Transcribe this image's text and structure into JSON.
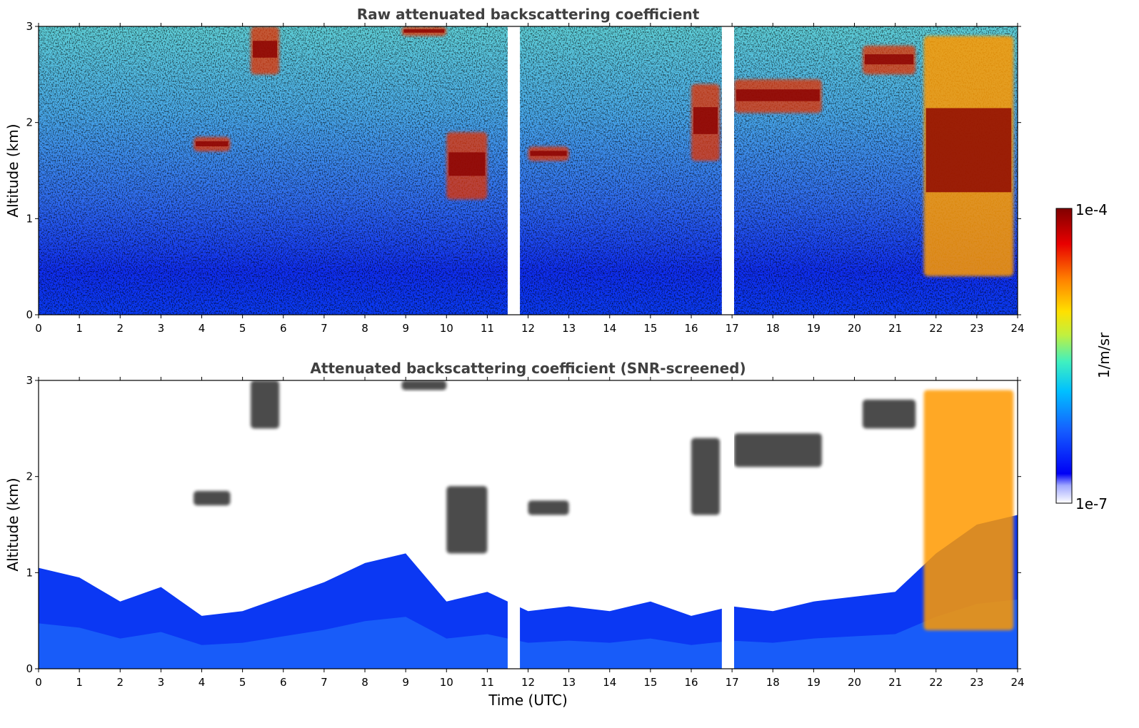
{
  "chart_data": [
    {
      "type": "heatmap",
      "title": "Raw attenuated backscattering coefficient",
      "xlabel": "",
      "ylabel": "Altitude (km)",
      "xlim": [
        0,
        24
      ],
      "ylim": [
        0,
        3
      ],
      "x_ticks": [
        "0",
        "1",
        "2",
        "3",
        "4",
        "5",
        "6",
        "7",
        "8",
        "9",
        "10",
        "11",
        "12",
        "13",
        "14",
        "15",
        "16",
        "17",
        "18",
        "19",
        "20",
        "21",
        "22",
        "23",
        "24"
      ],
      "y_ticks": [
        "0",
        "1",
        "2",
        "3"
      ],
      "data_gaps_utc": [
        [
          11.5,
          11.8
        ],
        [
          16.75,
          17.05
        ]
      ],
      "cloud_layers": [
        {
          "x": [
            3.8,
            4.7
          ],
          "y": [
            1.7,
            1.85
          ]
        },
        {
          "x": [
            5.2,
            5.9
          ],
          "y": [
            2.5,
            3.0
          ]
        },
        {
          "x": [
            8.9,
            10.0
          ],
          "y": [
            2.9,
            3.0
          ]
        },
        {
          "x": [
            10.0,
            11.0
          ],
          "y": [
            1.2,
            1.9
          ]
        },
        {
          "x": [
            12.0,
            13.0
          ],
          "y": [
            1.6,
            1.75
          ]
        },
        {
          "x": [
            16.0,
            16.7
          ],
          "y": [
            1.6,
            2.4
          ]
        },
        {
          "x": [
            17.05,
            19.2
          ],
          "y": [
            2.1,
            2.45
          ]
        },
        {
          "x": [
            20.2,
            21.5
          ],
          "y": [
            2.5,
            2.8
          ]
        },
        {
          "x": [
            21.7,
            23.9
          ],
          "y": [
            0.4,
            2.9
          ]
        }
      ]
    },
    {
      "type": "heatmap",
      "title": "Attenuated backscattering coefficient (SNR-screened)",
      "xlabel": "Time (UTC)",
      "ylabel": "Altitude (km)",
      "xlim": [
        0,
        24
      ],
      "ylim": [
        0,
        3
      ],
      "x_ticks": [
        "0",
        "1",
        "2",
        "3",
        "4",
        "5",
        "6",
        "7",
        "8",
        "9",
        "10",
        "11",
        "12",
        "13",
        "14",
        "15",
        "16",
        "17",
        "18",
        "19",
        "20",
        "21",
        "22",
        "23",
        "24"
      ],
      "y_ticks": [
        "0",
        "1",
        "2",
        "3"
      ],
      "data_gaps_utc": [
        [
          11.5,
          11.8
        ],
        [
          16.75,
          17.05
        ]
      ],
      "screened_layer_top_km": [
        1.05,
        0.95,
        0.7,
        0.85,
        0.55,
        0.6,
        0.75,
        0.9,
        1.1,
        1.2,
        0.7,
        0.8,
        0.6,
        0.65,
        0.6,
        0.7,
        0.55,
        0.65,
        0.6,
        0.7,
        0.75,
        0.8,
        1.2,
        1.5,
        1.6
      ]
    }
  ],
  "colorbar": {
    "label": "1/m/sr",
    "max_label": "1e-4",
    "min_label": "1e-7",
    "scale": "log",
    "colormap": [
      "#ffffff",
      "#0000f5",
      "#1560ff",
      "#00c0ff",
      "#40f0c0",
      "#c0f040",
      "#ffe000",
      "#ff8000",
      "#e80000",
      "#800000"
    ]
  }
}
